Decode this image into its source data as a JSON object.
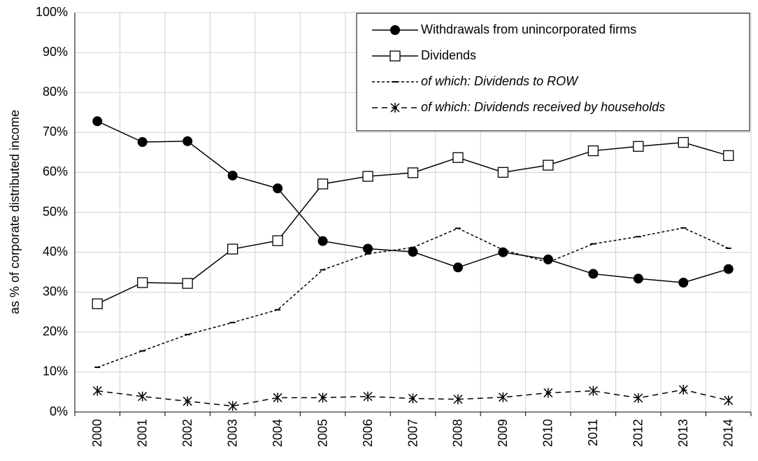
{
  "chart_data": {
    "type": "line",
    "y_label": "as % of corporate distributed income",
    "categories": [
      "2000",
      "2001",
      "2002",
      "2003",
      "2004",
      "2005",
      "2006",
      "2007",
      "2008",
      "2009",
      "2010",
      "2011",
      "2012",
      "2013",
      "2014"
    ],
    "series": [
      {
        "name": "Withdrawals from unincorporated firms",
        "color": "#000000",
        "marker": "circle",
        "dash": "solid",
        "italic": false,
        "values": [
          72.8,
          67.6,
          67.8,
          59.2,
          56.0,
          42.8,
          40.9,
          40.1,
          36.2,
          40.0,
          38.2,
          34.6,
          33.4,
          32.4,
          35.8
        ]
      },
      {
        "name": "Dividends",
        "color": "#000000",
        "marker": "square",
        "dash": "solid",
        "italic": false,
        "values": [
          27.1,
          32.4,
          32.2,
          40.8,
          42.9,
          57.1,
          59.0,
          59.9,
          63.7,
          60.0,
          61.8,
          65.4,
          66.5,
          67.5,
          64.2
        ]
      },
      {
        "name": "of which: Dividends to ROW",
        "color": "#000000",
        "marker": "dash",
        "dash": "dotted",
        "italic": true,
        "values": [
          11.2,
          15.3,
          19.4,
          22.4,
          25.6,
          35.6,
          39.6,
          41.2,
          46.0,
          40.6,
          37.5,
          42.1,
          43.9,
          46.1,
          41.0
        ]
      },
      {
        "name": "of which: Dividends received by households",
        "color": "#000000",
        "marker": "star",
        "dash": "dashed",
        "italic": true,
        "values": [
          5.3,
          3.9,
          2.7,
          1.5,
          3.6,
          3.6,
          3.9,
          3.4,
          3.2,
          3.7,
          4.8,
          5.3,
          3.5,
          5.6,
          2.9
        ]
      }
    ],
    "ylim": [
      0,
      100
    ],
    "yticks": [
      {
        "value": 0,
        "label": "0%"
      },
      {
        "value": 10,
        "label": "10%"
      },
      {
        "value": 20,
        "label": "20%"
      },
      {
        "value": 30,
        "label": "30%"
      },
      {
        "value": 40,
        "label": "40%"
      },
      {
        "value": 50,
        "label": "50%"
      },
      {
        "value": 60,
        "label": "60%"
      },
      {
        "value": 70,
        "label": "70%"
      },
      {
        "value": 80,
        "label": "80%"
      },
      {
        "value": 90,
        "label": "90%"
      },
      {
        "value": 100,
        "label": "100%"
      }
    ],
    "grid": true,
    "legend": "top-right"
  }
}
